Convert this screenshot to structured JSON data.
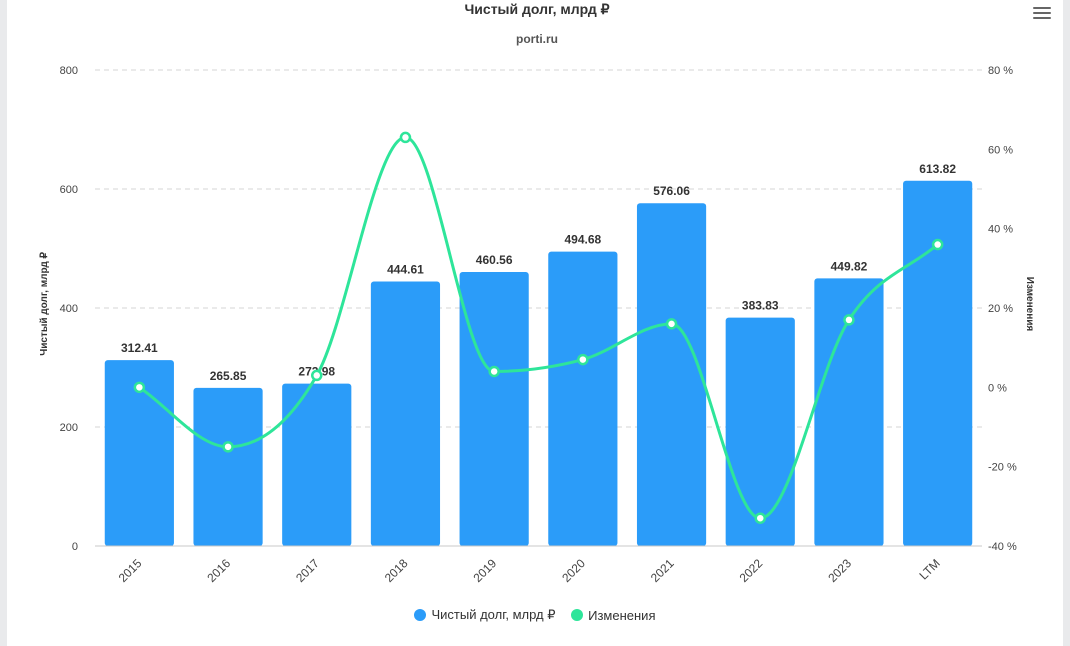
{
  "chart_data": {
    "type": "bar",
    "title": "Чистый долг, млрд ₽",
    "subtitle": "porti.ru",
    "categories": [
      "2015",
      "2016",
      "2017",
      "2018",
      "2019",
      "2020",
      "2021",
      "2022",
      "2023",
      "LTM"
    ],
    "series": [
      {
        "name": "Чистый долг, млрд ₽",
        "type": "bar",
        "axis": "left",
        "color": "#2b9cf9",
        "values": [
          312.41,
          265.85,
          272.98,
          444.61,
          460.56,
          494.68,
          576.06,
          383.83,
          449.82,
          613.82
        ]
      },
      {
        "name": "Изменения",
        "type": "line",
        "axis": "right",
        "color": "#2ee59a",
        "values": [
          0,
          -15,
          3,
          63,
          4,
          7,
          16,
          -33,
          17,
          36
        ]
      }
    ],
    "ylabel": "Чистый долг, млрд ₽",
    "ylabel_right": "Изменения",
    "ylim": [
      0,
      800
    ],
    "yticks": [
      "0",
      "200",
      "400",
      "600",
      "800"
    ],
    "ylim_right": [
      -40,
      80
    ],
    "yticks_right": [
      "-40 %",
      "-20 %",
      "0 %",
      "20 %",
      "40 %",
      "60 %",
      "80 %"
    ],
    "grid": true,
    "legend_position": "bottom"
  },
  "legend": {
    "items": [
      {
        "label": "Чистый долг, млрд ₽",
        "color": "#2b9cf9"
      },
      {
        "label": "Изменения",
        "color": "#2ee59a"
      }
    ]
  },
  "menu": {
    "icon": "hamburger-menu-icon"
  }
}
